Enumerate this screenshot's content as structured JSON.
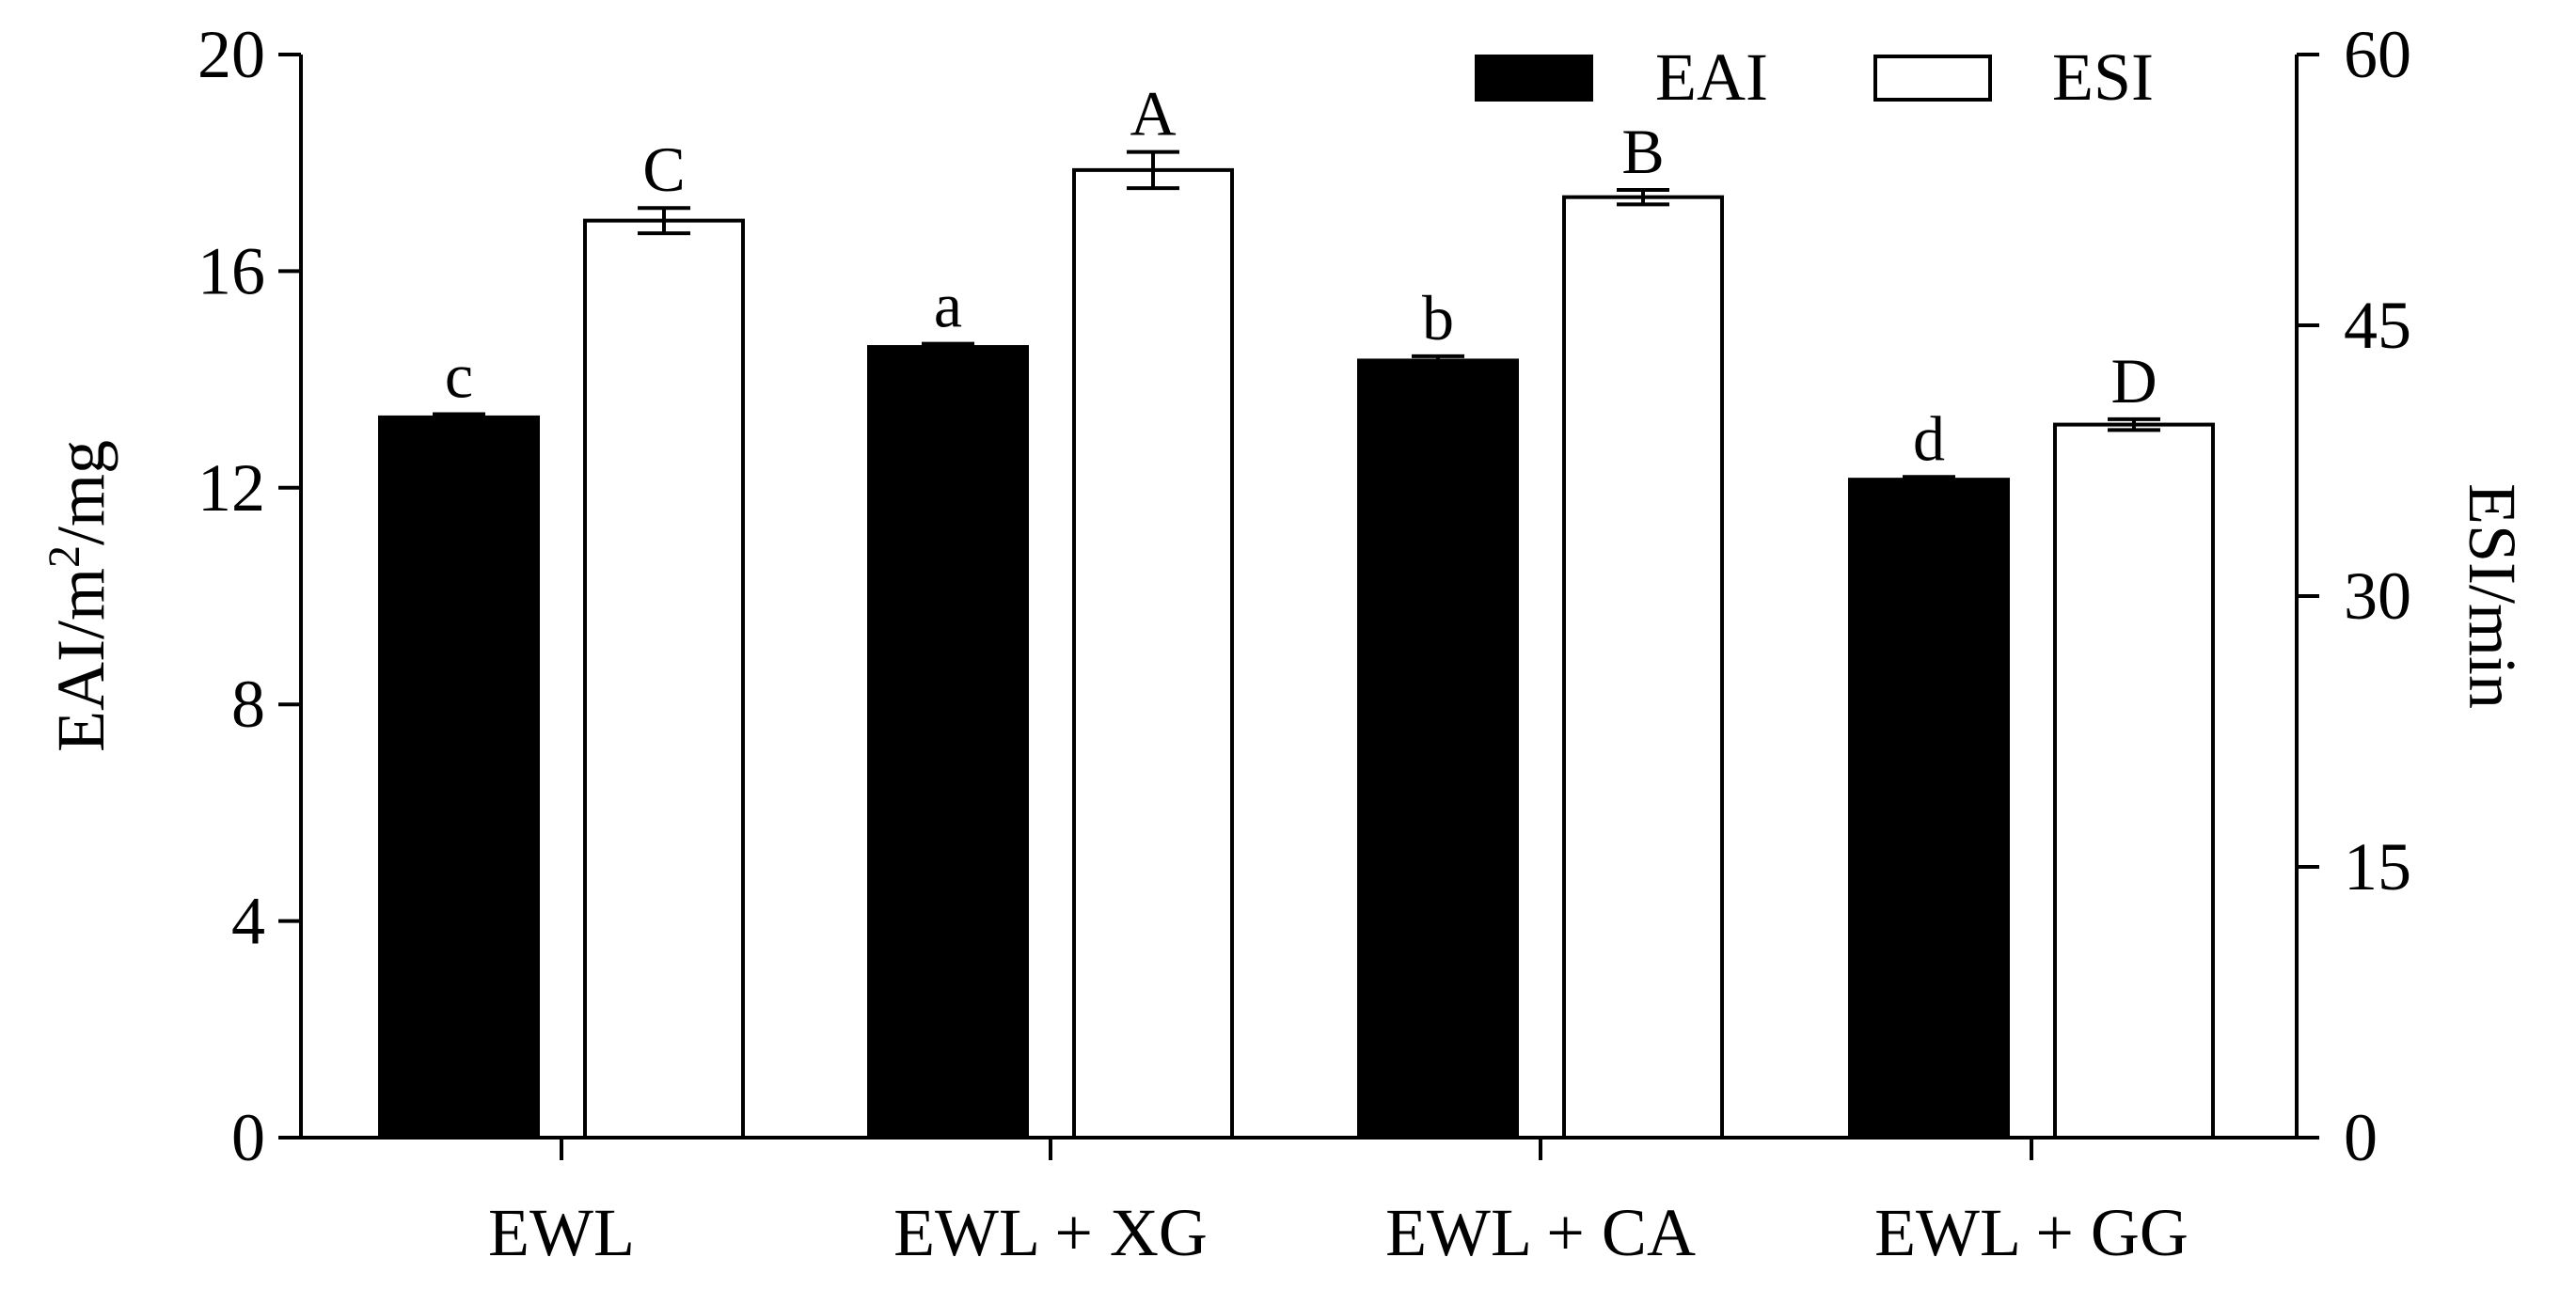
{
  "chart_data": {
    "type": "bar",
    "categories": [
      "EWL",
      "EWL + XG",
      "EWL + CA",
      "EWL + GG"
    ],
    "series": [
      {
        "name": "EAI",
        "axis": "left",
        "fill": "#000000",
        "values": [
          13.3,
          14.6,
          14.35,
          12.15
        ],
        "errors": [
          0.06,
          0.06,
          0.08,
          0.05
        ],
        "letters": [
          "c",
          "a",
          "b",
          "d"
        ]
      },
      {
        "name": "ESI",
        "axis": "right",
        "fill": "#ffffff",
        "values": [
          50.8,
          53.6,
          52.1,
          39.5
        ],
        "errors": [
          0.7,
          1.0,
          0.4,
          0.3
        ],
        "letters": [
          "C",
          "A",
          "B",
          "D"
        ]
      }
    ],
    "y_left": {
      "label": "EAI/m²/mg",
      "ylim": [
        0,
        20
      ],
      "ticks": [
        "0",
        "4",
        "8",
        "12",
        "16",
        "20"
      ]
    },
    "y_right": {
      "label": "ESI/min",
      "ylim": [
        0,
        60
      ],
      "ticks": [
        "0",
        "15",
        "30",
        "45",
        "60"
      ]
    },
    "legend_position": "top-right",
    "grid": false
  }
}
